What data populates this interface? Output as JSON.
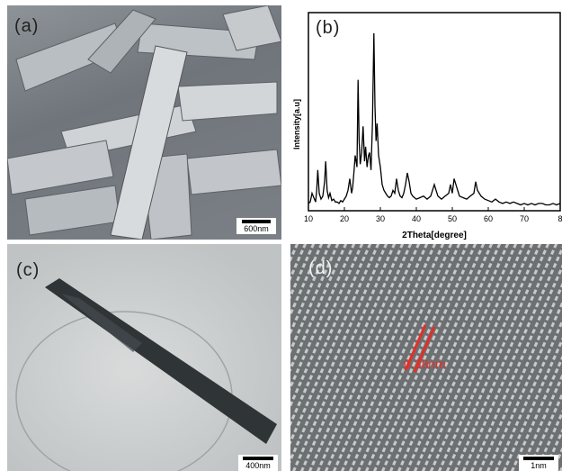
{
  "panels": {
    "a": {
      "label": "(a)",
      "scale": "600nm"
    },
    "b": {
      "label": "(b)"
    },
    "c": {
      "label": "(c)",
      "scale": "400nm"
    },
    "d": {
      "label": "(d)",
      "scale": "1nm",
      "annotation": "0.38nm"
    }
  },
  "chart_data": {
    "type": "line",
    "xlabel": "2Theta[degree]",
    "ylabel": "Intensity[a.u]",
    "xlim": [
      10,
      80
    ],
    "x_ticks": [
      "10",
      "20",
      "30",
      "40",
      "50",
      "60",
      "70",
      "8"
    ],
    "grid": false,
    "series": [
      {
        "x": [
          10,
          10.5,
          11,
          11.5,
          12,
          12.3,
          12.6,
          13,
          13.5,
          14,
          14.5,
          14.8,
          15.2,
          15.6,
          16,
          16.5,
          17,
          17.5,
          18,
          18.5,
          19,
          19.5,
          20,
          20.5,
          21,
          21.5,
          22,
          22.3,
          22.7,
          23,
          23.5,
          23.8,
          24.1,
          24.4,
          24.8,
          25.2,
          25.6,
          25.9,
          26.3,
          26.7,
          27,
          27.4,
          27.8,
          28.2,
          28.5,
          28.8,
          29.1,
          29.5,
          30,
          30.5,
          31,
          31.5,
          32,
          32.5,
          33,
          33.5,
          34,
          34.5,
          35,
          35.5,
          36,
          36.5,
          37,
          37.5,
          38,
          38.5,
          39,
          39.5,
          40,
          41,
          42,
          43,
          44,
          45,
          45.5,
          46,
          47,
          48,
          49,
          49.5,
          50,
          50.5,
          51,
          51.5,
          52,
          53,
          54,
          55,
          56,
          56.5,
          57,
          58,
          59,
          60,
          61,
          62,
          63,
          64,
          65,
          66,
          67,
          68,
          69,
          70,
          71,
          72,
          73,
          74,
          75,
          76,
          77,
          78,
          79,
          80
        ],
        "y": [
          5,
          6,
          12,
          9,
          6,
          14,
          28,
          12,
          8,
          10,
          20,
          34,
          14,
          9,
          12,
          7,
          8,
          6,
          6,
          5,
          7,
          6,
          8,
          10,
          14,
          22,
          12,
          16,
          28,
          38,
          30,
          90,
          48,
          32,
          40,
          58,
          34,
          44,
          30,
          38,
          40,
          28,
          60,
          122,
          72,
          48,
          60,
          38,
          30,
          18,
          14,
          12,
          10,
          9,
          10,
          14,
          12,
          22,
          14,
          10,
          9,
          12,
          18,
          26,
          20,
          12,
          10,
          9,
          8,
          9,
          10,
          8,
          10,
          18,
          14,
          10,
          8,
          10,
          12,
          18,
          12,
          22,
          18,
          14,
          10,
          9,
          8,
          10,
          12,
          20,
          14,
          10,
          8,
          7,
          6,
          8,
          6,
          5,
          6,
          5,
          6,
          5,
          4,
          5,
          4,
          5,
          4,
          5,
          5,
          4,
          4,
          5,
          4,
          5
        ]
      }
    ]
  }
}
